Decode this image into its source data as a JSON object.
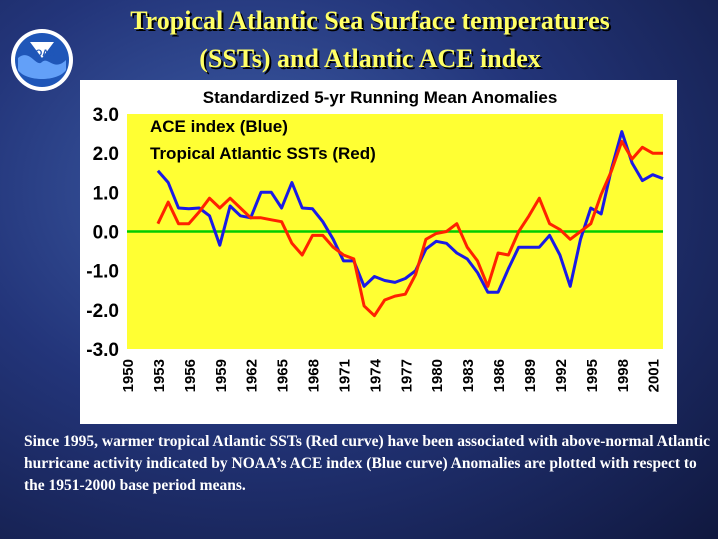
{
  "header": {
    "title_line1": "Tropical Atlantic Sea Surface temperatures",
    "title_line2": "(SSTs) and Atlantic ACE index"
  },
  "logo": {
    "text": "NOAA"
  },
  "caption": "Since 1995, warmer tropical Atlantic SSTs (Red curve) have been associated with above-normal Atlantic hurricane activity indicated by NOAA’s ACE index (Blue curve)  Anomalies are plotted with respect to the 1951-2000 base period means.",
  "chart_data": {
    "type": "line",
    "title": "Standardized 5-yr Running Mean Anomalies",
    "legend": [
      "ACE index (Blue)",
      "Tropical Atlantic SSTs (Red)"
    ],
    "legend_placement": "top-left",
    "xlim": [
      1950,
      2002
    ],
    "ylim": [
      -3.0,
      3.0
    ],
    "x_ticks": [
      "1950",
      "1953",
      "1956",
      "1959",
      "1962",
      "1965",
      "1968",
      "1971",
      "1974",
      "1977",
      "1980",
      "1983",
      "1986",
      "1989",
      "1992",
      "1995",
      "1998",
      "2001"
    ],
    "y_ticks": [
      "3.0",
      "2.0",
      "1.0",
      "0.0",
      "-1.0",
      "-2.0",
      "-3.0"
    ],
    "background_color": "#ffff33",
    "zero_line_color": "#00cc00",
    "x": [
      1953,
      1954,
      1955,
      1956,
      1957,
      1958,
      1959,
      1960,
      1961,
      1962,
      1963,
      1964,
      1965,
      1966,
      1967,
      1968,
      1969,
      1970,
      1971,
      1972,
      1973,
      1974,
      1975,
      1976,
      1977,
      1978,
      1979,
      1980,
      1981,
      1982,
      1983,
      1984,
      1985,
      1986,
      1987,
      1988,
      1989,
      1990,
      1991,
      1992,
      1993,
      1994,
      1995,
      1996,
      1997,
      1998,
      1999,
      2000,
      2001,
      2002
    ],
    "series": [
      {
        "name": "ACE index (Blue)",
        "color": "#1a1ae6",
        "values": [
          1.55,
          1.25,
          0.6,
          0.58,
          0.6,
          0.4,
          -0.35,
          0.65,
          0.4,
          0.35,
          1.0,
          1.0,
          0.6,
          1.25,
          0.6,
          0.58,
          0.25,
          -0.2,
          -0.75,
          -0.75,
          -1.4,
          -1.15,
          -1.25,
          -1.3,
          -1.2,
          -1.0,
          -0.45,
          -0.25,
          -0.3,
          -0.55,
          -0.7,
          -1.05,
          -1.55,
          -1.55,
          -0.95,
          -0.4,
          -0.4,
          -0.4,
          -0.1,
          -0.6,
          -1.4,
          -0.2,
          0.6,
          0.45,
          1.6,
          2.55,
          1.75,
          1.3,
          1.45,
          1.35
        ]
      },
      {
        "name": "Tropical Atlantic SSTs (Red)",
        "color": "#ff2200",
        "values": [
          0.2,
          0.75,
          0.2,
          0.2,
          0.5,
          0.85,
          0.6,
          0.85,
          0.6,
          0.35,
          0.35,
          0.3,
          0.25,
          -0.3,
          -0.6,
          -0.1,
          -0.1,
          -0.4,
          -0.6,
          -0.7,
          -1.9,
          -2.15,
          -1.75,
          -1.65,
          -1.6,
          -1.1,
          -0.2,
          -0.05,
          0.0,
          0.2,
          -0.4,
          -0.75,
          -1.4,
          -0.55,
          -0.6,
          0.0,
          0.4,
          0.85,
          0.2,
          0.05,
          -0.2,
          0.0,
          0.2,
          0.95,
          1.55,
          2.3,
          1.85,
          2.15,
          2.0,
          2.0
        ]
      }
    ],
    "grid": false
  }
}
